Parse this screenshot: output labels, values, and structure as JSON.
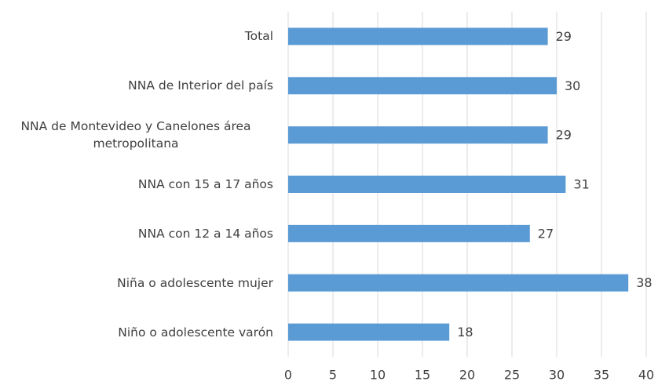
{
  "chart_data": {
    "type": "barh",
    "categories": [
      "Total",
      "NNA de Interior del país",
      "NNA de Montevideo y Canelones área metropolitana",
      "NNA con 15 a 17 años",
      "NNA con 12 a 14 años",
      "Niña o adolescente mujer",
      "Niño o adolescente varón"
    ],
    "values": [
      29,
      30,
      29,
      31,
      27,
      38,
      18
    ],
    "color": "#5b9bd5",
    "xlim": [
      0,
      40
    ],
    "xticks": [
      0,
      5,
      10,
      15,
      20,
      25,
      30,
      35,
      40
    ],
    "grid": true
  }
}
